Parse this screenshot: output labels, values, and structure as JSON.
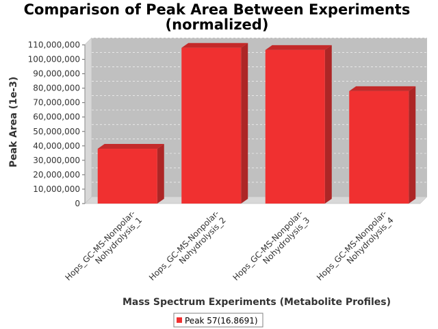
{
  "chart_data": {
    "type": "bar",
    "title_lines": [
      "Comparison of Peak Area Between Experiments",
      "(normalized)"
    ],
    "xlabel": "Mass Spectrum Experiments (Metabolite Profiles)",
    "ylabel": "Peak Area (1e-3)",
    "categories": [
      [
        "Hops_GC-MS-Nonpolar-",
        "Nohydrolysis_1"
      ],
      [
        "Hops_GC-MS-Nonpolar-",
        "Nohydrolysis_2"
      ],
      [
        "Hops_GC-MS-Nonpolar-",
        "Nohydrolysis_3"
      ],
      [
        "Hops_GC-MS-Nonpolar-",
        "Nohydrolysis_4"
      ]
    ],
    "series": [
      {
        "name": "Peak 57(16.8691)",
        "color": "#f03030",
        "values": [
          38000000,
          108000000,
          106500000,
          78000000
        ]
      }
    ],
    "yticks": [
      "0",
      "10,000,000",
      "20,000,000",
      "30,000,000",
      "40,000,000",
      "50,000,000",
      "60,000,000",
      "70,000,000",
      "80,000,000",
      "90,000,000",
      "100,000,000",
      "110,000,000"
    ],
    "ylim": [
      0,
      115000000
    ],
    "grid": true,
    "legend": "bottom-center",
    "colors": {
      "plot_background": "#c0c0c0",
      "bar": "#f03030",
      "bar_top": "#c42a2a",
      "bar_side": "#ad2626"
    }
  }
}
